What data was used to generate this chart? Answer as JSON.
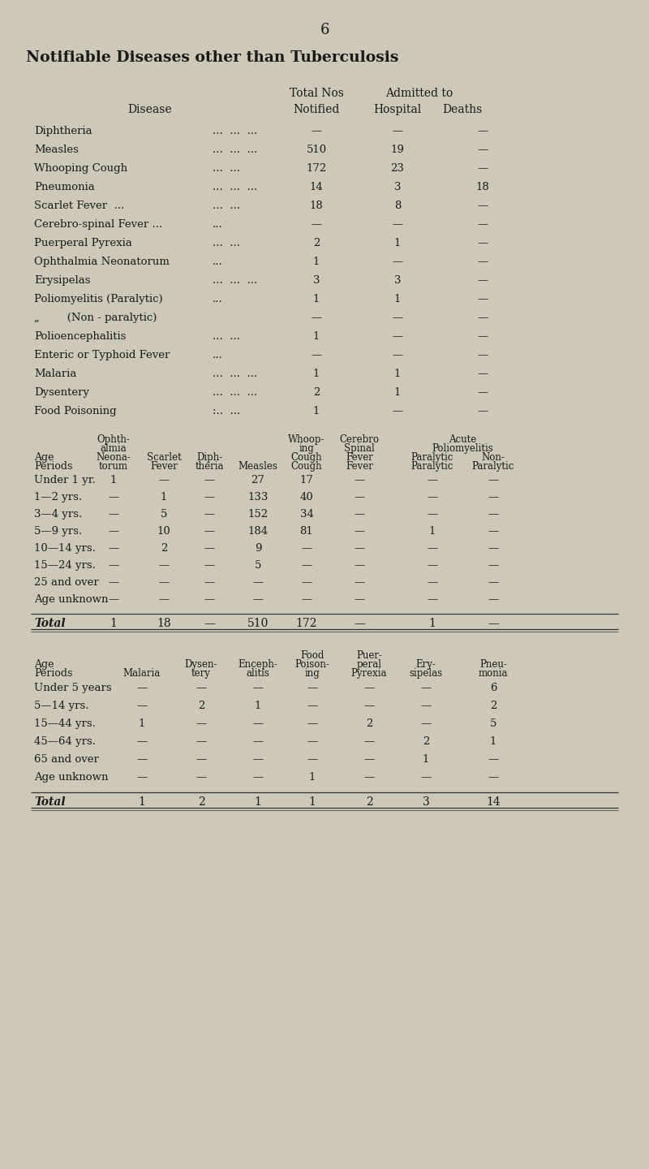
{
  "page_number": "6",
  "main_title": "Notifiable Diseases other than Tuberculosis",
  "bg_color": "#cdc8b8",
  "text_color": "#1a1a1a",
  "t1_diseases": [
    [
      "Diphtheria",
      "...",
      "...",
      "...",
      "—",
      "—",
      "—"
    ],
    [
      "Measles",
      "...",
      "...",
      "...",
      "510",
      "19",
      "—"
    ],
    [
      "Whooping Cough",
      "...",
      "...",
      "",
      "172",
      "23",
      "—"
    ],
    [
      "Pneumonia",
      "...",
      "...",
      "...",
      "14",
      "3",
      "18"
    ],
    [
      "Scarlet Fever  ...",
      "...",
      "...",
      "",
      "18",
      "8",
      "—"
    ],
    [
      "Cerebro-spinal Fever ...",
      "...",
      "",
      "",
      "—",
      "—",
      "—"
    ],
    [
      "Puerperal Pyrexia",
      "...",
      "...",
      "",
      "2",
      "1",
      "—"
    ],
    [
      "Ophthalmia Neonatorum",
      "...",
      "",
      "",
      "1",
      "—",
      "—"
    ],
    [
      "Erysipelas",
      "...",
      "...",
      "...",
      "3",
      "3",
      "—"
    ],
    [
      "Poliomyelitis (Paralytic)",
      "...",
      "",
      "",
      "1",
      "1",
      "—"
    ],
    [
      "„        (Non - paralytic)",
      "",
      "",
      "",
      "—",
      "—",
      "—"
    ],
    [
      "Polioencephalitis",
      "...",
      "...",
      "",
      "1",
      "—",
      "—"
    ],
    [
      "Enteric or Typhoid Fever",
      "...",
      "",
      "",
      "—",
      "—",
      "—"
    ],
    [
      "Malaria",
      "...",
      "...",
      "...",
      "1",
      "1",
      "—"
    ],
    [
      "Dysentery",
      "...",
      "...",
      "...",
      "2",
      "1",
      "—"
    ],
    [
      "Food Poisoning",
      ":..",
      "...",
      "",
      "1",
      "—",
      "—"
    ]
  ],
  "t2_rows": [
    [
      "Under 1 yr.",
      "1",
      "—",
      "—",
      "27",
      "17",
      "—",
      "—",
      "—"
    ],
    [
      "1—2 yrs.",
      "—",
      "1",
      "—",
      "133",
      "40",
      "—",
      "—",
      "—"
    ],
    [
      "3—4 yrs.",
      "—",
      "5",
      "—",
      "152",
      "34",
      "—",
      "—",
      "—"
    ],
    [
      "5—9 yrs.",
      "—",
      "10",
      "—",
      "184",
      "81",
      "—",
      "1",
      "—"
    ],
    [
      "10—14 yrs.",
      "—",
      "2",
      "—",
      "9",
      "—",
      "—",
      "—",
      "—"
    ],
    [
      "15—24 yrs.",
      "—",
      "—",
      "—",
      "5",
      "—",
      "—",
      "—",
      "—"
    ],
    [
      "25 and over",
      "—",
      "—",
      "—",
      "—",
      "—",
      "—",
      "—",
      "—"
    ],
    [
      "Age unknown",
      "—",
      "—",
      "—",
      "—",
      "—",
      "—",
      "—",
      "—"
    ]
  ],
  "t2_total": [
    "Total",
    "1",
    "18",
    "—",
    "510",
    "172",
    "—",
    "1",
    "—"
  ],
  "t3_rows": [
    [
      "Under 5 years",
      "—",
      "—",
      "—",
      "—",
      "—",
      "—",
      "6"
    ],
    [
      "5—14 yrs.",
      "—",
      "2",
      "1",
      "—",
      "—",
      "—",
      "2"
    ],
    [
      "15—44 yrs.",
      "1",
      "—",
      "—",
      "—",
      "2",
      "—",
      "5"
    ],
    [
      "45—64 yrs.",
      "—",
      "—",
      "—",
      "—",
      "—",
      "2",
      "1"
    ],
    [
      "65 and over",
      "—",
      "—",
      "—",
      "—",
      "—",
      "1",
      "—"
    ],
    [
      "Age unknown",
      "—",
      "—",
      "—",
      "1",
      "—",
      "—",
      "—"
    ]
  ],
  "t3_total": [
    "Total",
    "1",
    "2",
    "1",
    "1",
    "2",
    "3",
    "14"
  ]
}
